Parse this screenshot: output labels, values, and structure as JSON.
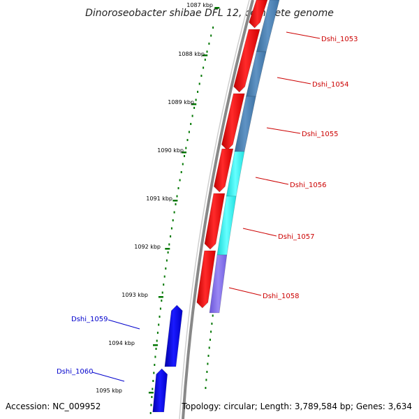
{
  "title": "Dinoroseobacter shibae DFL 12, complete genome",
  "footer": {
    "accession": "Accession: NC_009952",
    "topology": "Topology: circular; Length: 3,789,584 bp; Genes: 3,634"
  },
  "ticks": [
    "1087 kbp",
    "1088 kbp",
    "1089 kbp",
    "1090 kbp",
    "1091 kbp",
    "1092 kbp",
    "1093 kbp",
    "1094 kbp",
    "1095 kbp"
  ],
  "genes_right": [
    "Dshi_1053",
    "Dshi_1054",
    "Dshi_1055",
    "Dshi_1056",
    "Dshi_1057",
    "Dshi_1058"
  ],
  "genes_left": [
    "Dshi_1059",
    "Dshi_1060"
  ],
  "colors": {
    "forward": "#ff0000",
    "reverse": "#0000ee",
    "steelblue": "#4682b4",
    "cyan": "#00ffff",
    "purple": "#7b68ee",
    "tick": "#007700",
    "label_right": "#cc0000",
    "label_left": "#0000cc"
  }
}
